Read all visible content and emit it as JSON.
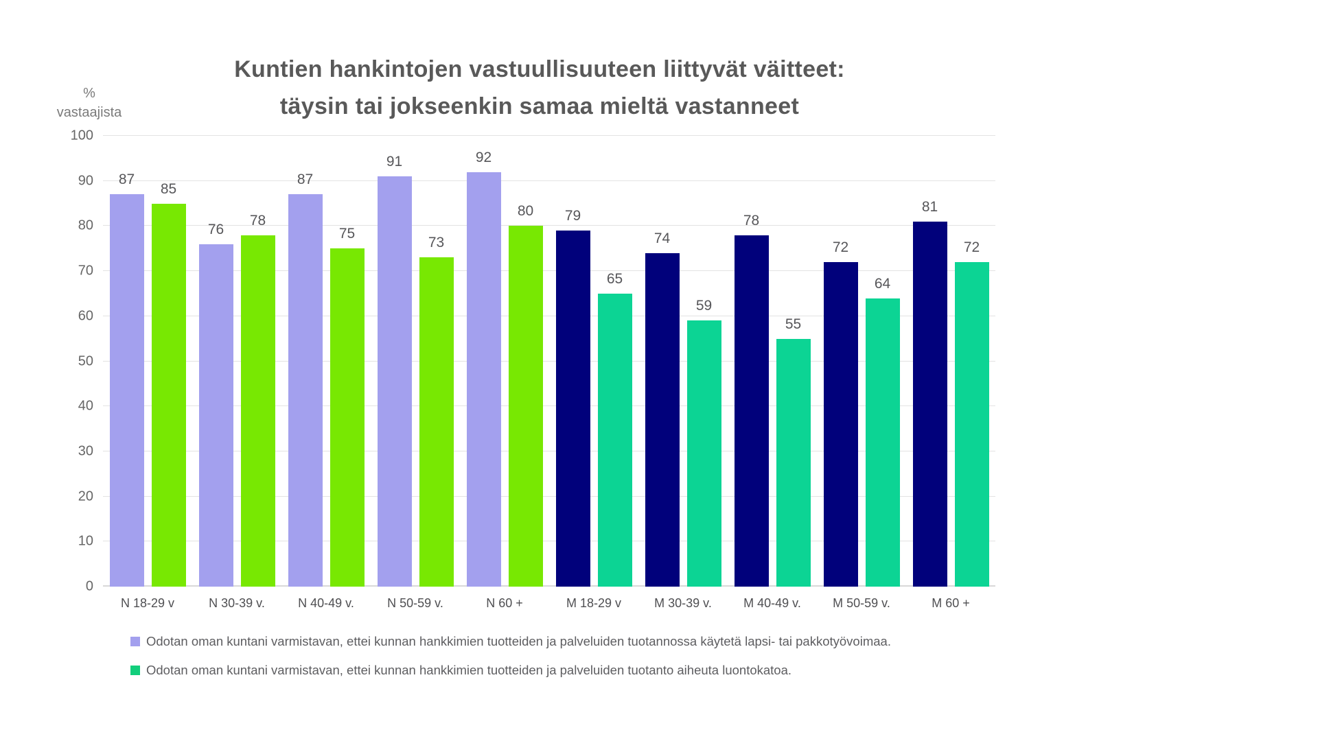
{
  "title": {
    "line1": "Kuntien hankintojen vastuullisuuteen liittyvät väitteet:",
    "line2": "täysin tai jokseenkin samaa mieltä vastanneet"
  },
  "y_axis_title": {
    "line1": "%",
    "line2": "vastaajista"
  },
  "chart_data": {
    "type": "bar",
    "title": "Kuntien hankintojen vastuullisuuteen liittyvät väitteet: täysin tai jokseenkin samaa mieltä vastanneet",
    "xlabel": "",
    "ylabel": "% vastaajista",
    "ylim": [
      0,
      100
    ],
    "y_tick_step": 10,
    "grid": true,
    "legend_position": "bottom-left",
    "categories": [
      "N 18-29 v",
      "N 30-39 v.",
      "N 40-49 v.",
      "N 50-59 v.",
      "N 60 +",
      "M 18-29 v",
      "M 30-39 v.",
      "M 40-49 v.",
      "M 50-59 v.",
      "M 60 +"
    ],
    "series": [
      {
        "name": "Odotan oman kuntani varmistavan, ettei kunnan hankkimien tuotteiden ja palveluiden tuotannossa käytetä lapsi- tai pakkotyövoimaa.",
        "values": [
          87,
          76,
          87,
          91,
          92,
          79,
          74,
          78,
          72,
          81
        ],
        "colors": {
          "N": "#a3a0ee",
          "M": "#01017b"
        },
        "legend_color": "#a3a0ee"
      },
      {
        "name": "Odotan oman kuntani varmistavan, ettei kunnan hankkimien tuotteiden ja palveluiden tuotanto aiheuta luontokatoa.",
        "values": [
          85,
          78,
          75,
          73,
          80,
          65,
          59,
          55,
          64,
          72
        ],
        "colors": {
          "N": "#78e802",
          "M": "#0cd494"
        },
        "legend_color": "#12ce7c"
      }
    ]
  }
}
